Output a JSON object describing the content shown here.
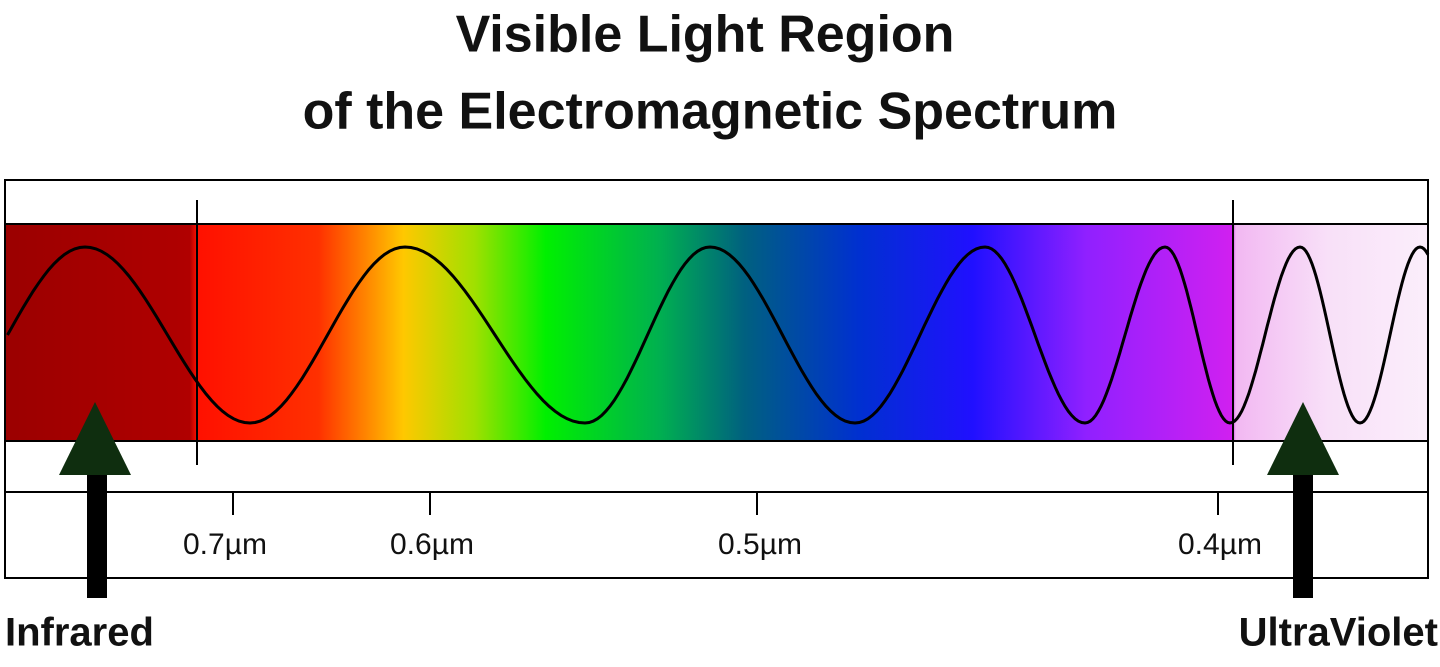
{
  "title": {
    "line1": "Visible Light Region",
    "line2": "of the Electromagnetic Spectrum"
  },
  "scale": {
    "labels": [
      "0.7µm",
      "0.6µm",
      "0.5µm",
      "0.4µm"
    ]
  },
  "arrows": {
    "left": "Infrared",
    "right": "UltraViolet"
  }
}
